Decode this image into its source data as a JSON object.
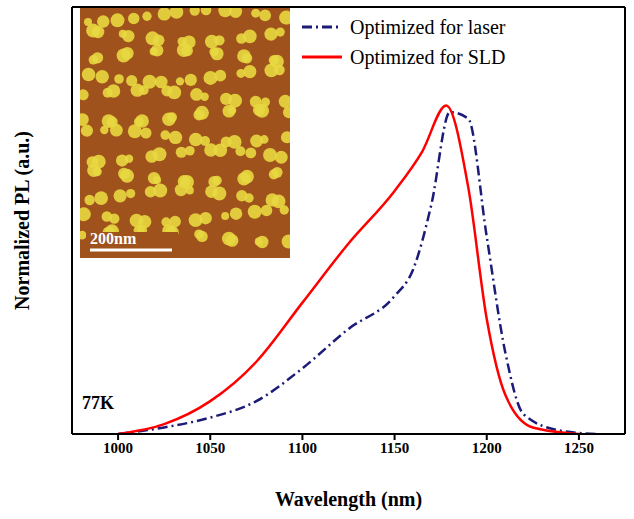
{
  "chart_data": {
    "type": "line",
    "x_label": "Wavelength (nm)",
    "y_label": "Normalized PL (a.u.)",
    "xlim": [
      975,
      1275
    ],
    "xticks": [
      1000,
      1050,
      1100,
      1150,
      1200,
      1250
    ],
    "ylim": [
      0,
      1.3
    ],
    "yticks": [],
    "tick_labels": "x",
    "legend": "upper right",
    "annotations": [
      "77K",
      "200nm"
    ],
    "series": [
      {
        "name": "Optimized for laser",
        "color": "#1c1c78",
        "line_style": "dashdot",
        "x": [
          1000,
          1025,
          1050,
          1075,
          1100,
          1125,
          1150,
          1160,
          1170,
          1180,
          1190,
          1200,
          1210,
          1220,
          1240,
          1260
        ],
        "values": [
          0,
          0.02,
          0.05,
          0.1,
          0.2,
          0.32,
          0.42,
          0.5,
          0.7,
          0.98,
          0.96,
          0.6,
          0.25,
          0.06,
          0.01,
          0
        ]
      },
      {
        "name": "Optimized for SLD",
        "color": "#ff0000",
        "line_style": "solid",
        "x": [
          1000,
          1025,
          1050,
          1075,
          1100,
          1125,
          1150,
          1165,
          1178,
          1190,
          1200,
          1210,
          1225,
          1250
        ],
        "values": [
          0,
          0.03,
          0.1,
          0.22,
          0.4,
          0.58,
          0.74,
          0.86,
          1.0,
          0.75,
          0.35,
          0.12,
          0.02,
          0
        ]
      }
    ]
  }
}
